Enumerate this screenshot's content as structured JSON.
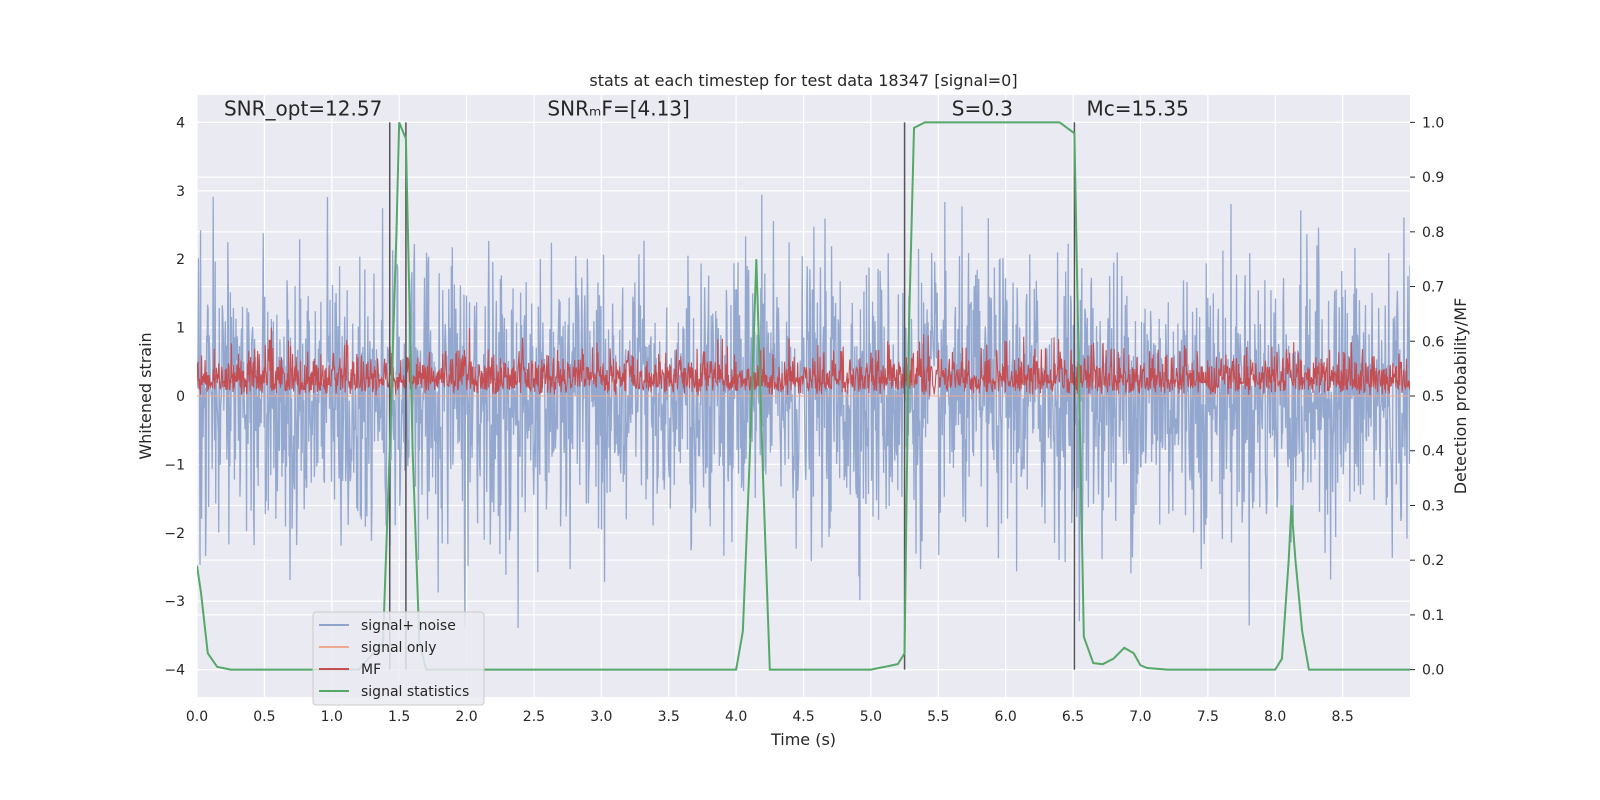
{
  "chart_data": {
    "type": "line",
    "title": "stats at each timestep for test data 18347 [signal=0]",
    "xlabel": "Time (s)",
    "ylabel": "Whitened strain",
    "ylabel_right": "Detection probability/MF",
    "xlim": [
      0,
      9.0
    ],
    "ylim": [
      -4.4,
      4.4
    ],
    "ylim_right": [
      -0.05,
      1.05
    ],
    "x_ticks": [
      0.0,
      0.5,
      1.0,
      1.5,
      2.0,
      2.5,
      3.0,
      3.5,
      4.0,
      4.5,
      5.0,
      5.5,
      6.0,
      6.5,
      7.0,
      7.5,
      8.0,
      8.5
    ],
    "x_tick_labels": [
      "0.0",
      "0.5",
      "1.0",
      "1.5",
      "2.0",
      "2.5",
      "3.0",
      "3.5",
      "4.0",
      "4.5",
      "5.0",
      "5.5",
      "6.0",
      "6.5",
      "7.0",
      "7.5",
      "8.0",
      "8.5"
    ],
    "y_ticks": [
      4,
      3,
      2,
      1,
      0,
      -1,
      -2,
      -3,
      -4
    ],
    "y_tick_labels": [
      "4",
      "3",
      "2",
      "1",
      "0",
      "−1",
      "−2",
      "−3",
      "−4"
    ],
    "y_ticks_right": [
      1.0,
      0.9,
      0.8,
      0.7,
      0.6,
      0.5,
      0.4,
      0.3,
      0.2,
      0.1,
      0.0
    ],
    "y_tick_labels_right": [
      "1.0",
      "0.9",
      "0.8",
      "0.7",
      "0.6",
      "0.5",
      "0.4",
      "0.3",
      "0.2",
      "0.1",
      "0.0"
    ],
    "grid": true,
    "legend_position": "lower-left",
    "annotations": [
      {
        "name": "snr-opt",
        "text": "SNR_opt=12.57",
        "x": 0.2,
        "y": 4.1
      },
      {
        "name": "snr-mf",
        "text": "SNRₘF=[4.13]",
        "x": 2.6,
        "y": 4.1
      },
      {
        "name": "s-value",
        "text": "S=0.3",
        "x": 5.6,
        "y": 4.1
      },
      {
        "name": "mc-value",
        "text": "Mᴄ=15.35",
        "x": 6.6,
        "y": 4.1
      }
    ],
    "vertical_lines": [
      1.43,
      1.55,
      5.25,
      6.51
    ],
    "vertical_line_range": [
      -4.0,
      4.0
    ],
    "series": [
      {
        "name": "signal+ noise",
        "axis": "left",
        "color": "#8fa4cc",
        "kind": "noise",
        "envelope": {
          "typical": 1.6,
          "peak": 4.0,
          "negative_peak": -3.85
        }
      },
      {
        "name": "signal only",
        "axis": "left",
        "color": "#eea990",
        "kind": "flat",
        "values_constant": 0
      },
      {
        "name": "MF",
        "axis": "left",
        "color": "#c44e52",
        "kind": "noise",
        "envelope": {
          "min": 0.0,
          "typical_max": 0.75,
          "peak": 1.0
        }
      },
      {
        "name": "signal statistics",
        "axis": "right",
        "color": "#55a868",
        "kind": "line",
        "x": [
          0.0,
          0.03,
          0.08,
          0.15,
          0.25,
          0.4,
          0.8,
          1.2,
          1.38,
          1.43,
          1.48,
          1.5,
          1.55,
          1.6,
          1.65,
          1.7,
          2.0,
          3.0,
          4.0,
          4.05,
          4.1,
          4.15,
          4.2,
          4.25,
          4.5,
          5.0,
          5.2,
          5.25,
          5.28,
          5.32,
          5.4,
          6.0,
          6.4,
          6.51,
          6.58,
          6.65,
          6.72,
          6.8,
          6.88,
          6.95,
          7.0,
          7.05,
          7.2,
          7.5,
          8.0,
          8.05,
          8.1,
          8.12,
          8.15,
          8.2,
          8.25,
          8.5,
          9.0
        ],
        "y": [
          0.19,
          0.14,
          0.03,
          0.005,
          0.0,
          0.0,
          0.0,
          0.0,
          0.05,
          0.4,
          0.8,
          1.0,
          0.97,
          0.4,
          0.05,
          0.0,
          0.0,
          0.0,
          0.0,
          0.07,
          0.38,
          0.75,
          0.35,
          0.0,
          0.0,
          0.0,
          0.01,
          0.03,
          0.6,
          0.99,
          1.0,
          1.0,
          1.0,
          0.98,
          0.06,
          0.012,
          0.01,
          0.02,
          0.04,
          0.03,
          0.008,
          0.003,
          0.0,
          0.0,
          0.0,
          0.02,
          0.2,
          0.3,
          0.2,
          0.07,
          0.0,
          0.0,
          0.0
        ]
      }
    ]
  }
}
